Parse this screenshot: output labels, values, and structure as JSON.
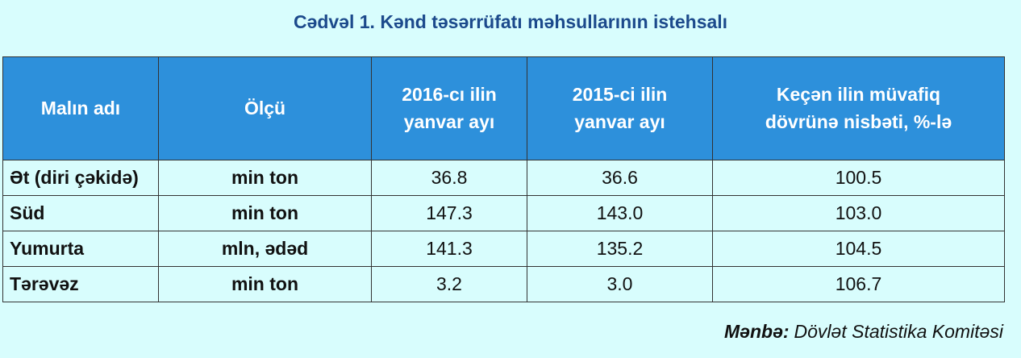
{
  "header": {
    "title": "Cədvəl 1. Kənd təsərrüfatı məhsullarının istehsalı"
  },
  "table": {
    "columns": [
      [
        "Malın adı"
      ],
      [
        "Ölçü"
      ],
      [
        "2016-cı ilin",
        "yanvar ayı"
      ],
      [
        "2015-ci ilin",
        "yanvar ayı"
      ],
      [
        "Keçən ilin müvafiq",
        "dövrünə nisbəti, %-lə"
      ]
    ],
    "rows": [
      [
        "Ət (diri çəkidə)",
        "min ton",
        "36.8",
        "36.6",
        "100.5"
      ],
      [
        "Süd",
        "min ton",
        "147.3",
        "143.0",
        "103.0"
      ],
      [
        "Yumurta",
        "mln, ədəd",
        "141.3",
        "135.2",
        "104.5"
      ],
      [
        "Tərəvəz",
        "min ton",
        "3.2",
        "3.0",
        "106.7"
      ]
    ]
  },
  "source": {
    "label": "Mənbə:",
    "text": "Dövlət Statistika Komitəsi"
  }
}
